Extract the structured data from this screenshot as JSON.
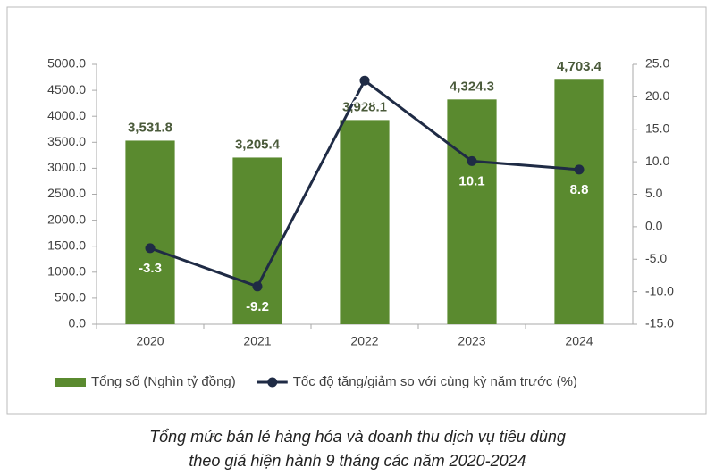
{
  "chart_data": {
    "type": "combo",
    "categories": [
      "2020",
      "2021",
      "2022",
      "2023",
      "2024"
    ],
    "series": [
      {
        "name": "Tổng số (Nghìn tỷ đồng)",
        "type": "bar",
        "color": "#5a8a2f",
        "values": [
          3531.8,
          3205.4,
          3928.1,
          4324.3,
          4703.4
        ],
        "value_labels": [
          "3,531.8",
          "3,205.4",
          "3,928.1",
          "4,324.3",
          "4,703.4"
        ]
      },
      {
        "name": "Tốc độ tăng/giảm so với cùng kỳ năm trước (%)",
        "type": "line",
        "color": "#1f2b45",
        "axis": "y2",
        "values": [
          -3.3,
          -9.2,
          22.5,
          10.1,
          8.8
        ]
      }
    ],
    "ylim": [
      0,
      5000
    ],
    "yticks": [
      {
        "value": 0,
        "label": "0.0"
      },
      {
        "value": 500,
        "label": "500.0"
      },
      {
        "value": 1000,
        "label": "1000.0"
      },
      {
        "value": 1500,
        "label": "1500.0"
      },
      {
        "value": 2000,
        "label": "2000.0"
      },
      {
        "value": 2500,
        "label": "2500.0"
      },
      {
        "value": 3000,
        "label": "3000.0"
      },
      {
        "value": 3500,
        "label": "3500.0"
      },
      {
        "value": 4000,
        "label": "4000.0"
      },
      {
        "value": 4500,
        "label": "4500.0"
      },
      {
        "value": 5000,
        "label": "5000.0"
      }
    ],
    "y2lim": [
      -15,
      25
    ],
    "y2ticks": [
      {
        "value": -15,
        "label": "-15.0"
      },
      {
        "value": -10,
        "label": "-10.0"
      },
      {
        "value": -5,
        "label": "-5.0"
      },
      {
        "value": 0,
        "label": "0.0"
      },
      {
        "value": 5,
        "label": "5.0"
      },
      {
        "value": 10,
        "label": "10.0"
      },
      {
        "value": 15,
        "label": "15.0"
      },
      {
        "value": 20,
        "label": "20.0"
      },
      {
        "value": 25,
        "label": "25.0"
      }
    ],
    "grid": false,
    "legend": "bottom",
    "caption": [
      "Tổng mức bán lẻ hàng hóa và doanh thu dịch vụ tiêu dùng",
      "theo giá hiện hành 9 tháng các năm 2020-2024"
    ]
  }
}
